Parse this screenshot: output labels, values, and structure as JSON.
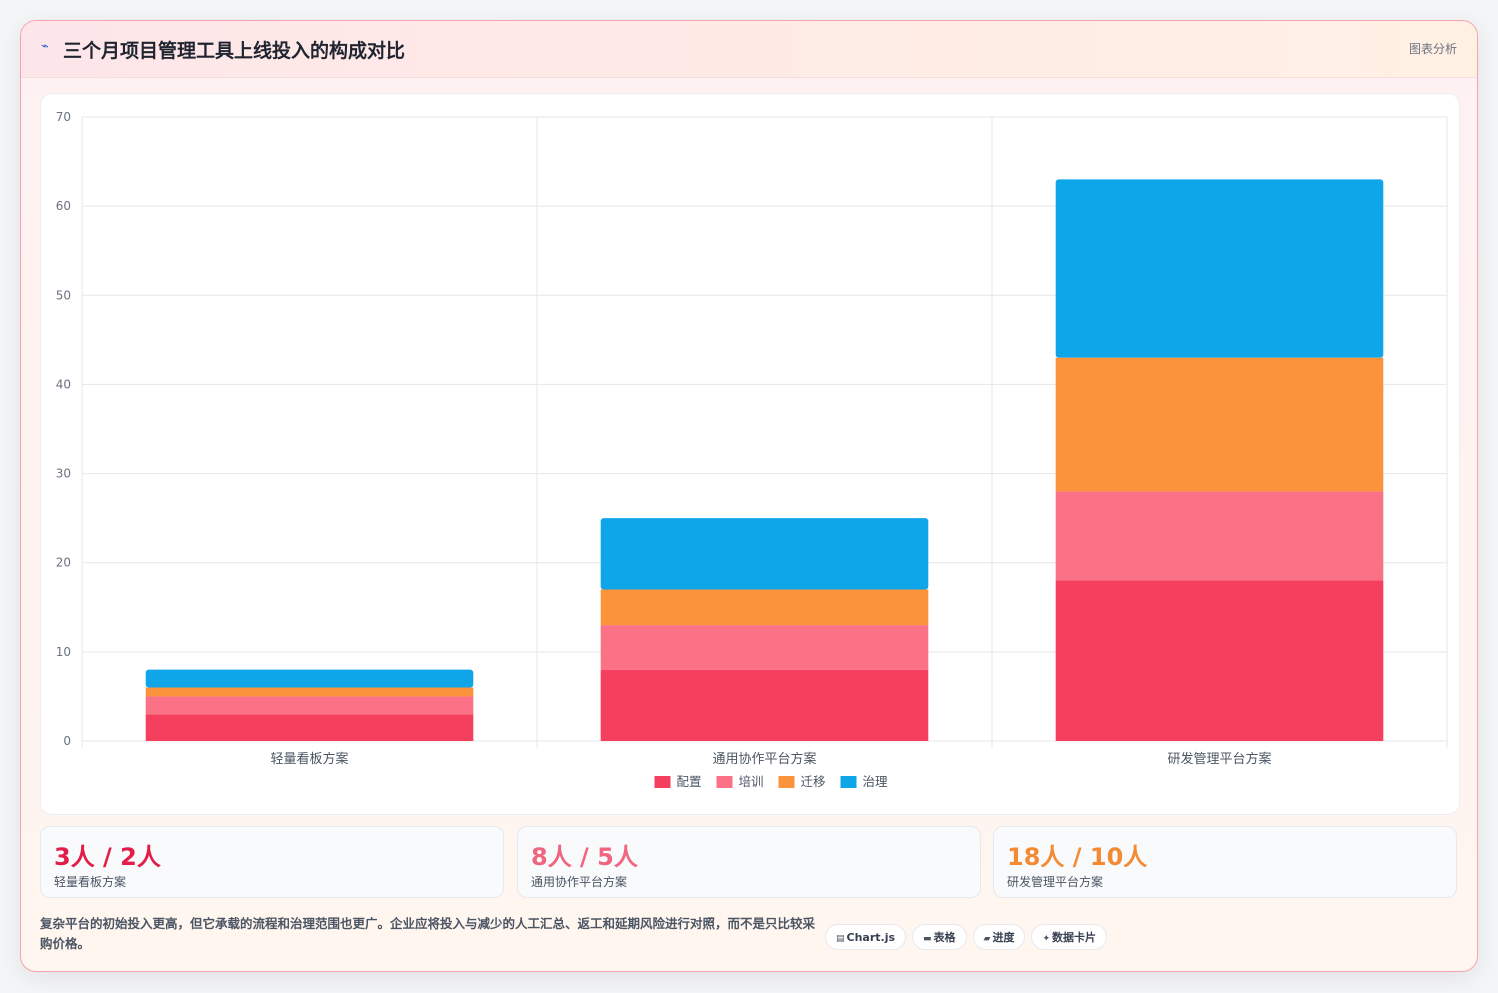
{
  "header": {
    "title": "三个月项目管理工具上线投入的构成对比",
    "badge": "图表分析",
    "logo_icon": "chart-trend-icon"
  },
  "colors": {
    "config": "#f43f5e",
    "training": "#fb7185",
    "migration": "#fb923c",
    "governance": "#0ea5e9",
    "grid": "#e5e7eb",
    "axis_text": "#6b7280"
  },
  "chart_data": {
    "type": "bar",
    "stacked": true,
    "categories": [
      "轻量看板方案",
      "通用协作平台方案",
      "研发管理平台方案"
    ],
    "series": [
      {
        "name": "配置",
        "color": "#f43f5e",
        "values": [
          3,
          8,
          18
        ]
      },
      {
        "name": "培训",
        "color": "#fb7185",
        "values": [
          2,
          5,
          10
        ]
      },
      {
        "name": "迁移",
        "color": "#fb923c",
        "values": [
          1,
          4,
          15
        ]
      },
      {
        "name": "治理",
        "color": "#0ea5e9",
        "values": [
          2,
          8,
          20
        ]
      }
    ],
    "ylim": [
      0,
      70
    ],
    "yticks": [
      0,
      10,
      20,
      30,
      40,
      50,
      60,
      70
    ],
    "grid": true,
    "legend": "bottom"
  },
  "stats": [
    {
      "value": "3人 / 2人",
      "label": "轻量看板方案",
      "color": "#e11d48"
    },
    {
      "value": "8人 / 5人",
      "label": "通用协作平台方案",
      "color": "#f06580"
    },
    {
      "value": "18人 / 10人",
      "label": "研发管理平台方案",
      "color": "#f28b33"
    }
  ],
  "note": "复杂平台的初始投入更高，但它承载的流程和治理范围也更广。企业应将投入与减少的人工汇总、返工和延期风险进行对照，而不是只比较采购价格。",
  "chips": [
    {
      "icon": "▤",
      "label": "Chart.js"
    },
    {
      "icon": "▬",
      "label": "表格"
    },
    {
      "icon": "▰",
      "label": "进度"
    },
    {
      "icon": "✦",
      "label": "数据卡片"
    }
  ]
}
